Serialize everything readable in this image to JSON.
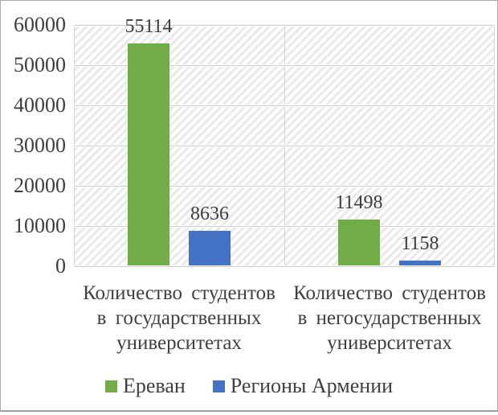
{
  "chart_data": {
    "type": "bar",
    "title": "",
    "xlabel": "",
    "ylabel": "",
    "categories": [
      "Количество студентов в государственных университетах",
      "Количество студентов в негосударственных университетах"
    ],
    "categories_lines": [
      [
        "Количество студентов",
        "в государственных",
        "университетах"
      ],
      [
        "Количество студентов",
        "в негосударственных",
        "университетах"
      ]
    ],
    "series": [
      {
        "name": "Ереван",
        "color": "#70AD47",
        "values": [
          55114,
          11498
        ]
      },
      {
        "name": "Регионы Армении",
        "color": "#4472C4",
        "values": [
          8636,
          1158
        ]
      }
    ],
    "data_labels": true,
    "ylim": [
      0,
      60000
    ],
    "ytick_step": 10000,
    "yticks": [
      "60000",
      "50000",
      "40000",
      "30000",
      "20000",
      "10000",
      "0"
    ],
    "grid": true,
    "legend_position": "bottom",
    "plot_background": "diagonal-hatch"
  },
  "colors": {
    "text": "#404040",
    "gridline": "#cdcdcd",
    "hatch_stripe": "#e9e9e9",
    "frame_border": "#ababab"
  }
}
